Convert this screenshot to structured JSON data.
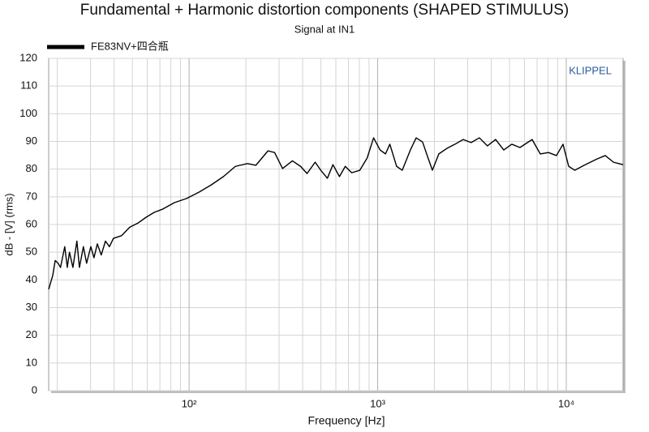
{
  "chart_data": {
    "type": "line",
    "title": "Fundamental + Harmonic distortion components (SHAPED STIMULUS)",
    "subtitle": "Signal at IN1",
    "annotation": "KLIPPEL",
    "x_label": "Frequency [Hz]",
    "y_label": "dB - [V]  (rms)",
    "x_scale": "log",
    "grid": true,
    "legend": "top-left",
    "xlim": [
      18,
      20000
    ],
    "ylim": [
      0,
      120
    ],
    "xticks": [
      {
        "value": 100,
        "label": "10²"
      },
      {
        "value": 1000,
        "label": "10³"
      },
      {
        "value": 10000,
        "label": "10⁴"
      }
    ],
    "xminorticks": [
      20,
      30,
      40,
      50,
      60,
      70,
      80,
      90,
      200,
      300,
      400,
      500,
      600,
      700,
      800,
      900,
      2000,
      3000,
      4000,
      5000,
      6000,
      7000,
      8000,
      9000
    ],
    "yticks": [
      0,
      10,
      20,
      30,
      40,
      50,
      60,
      70,
      80,
      90,
      100,
      110,
      120
    ],
    "x": [
      18,
      18.9,
      19.5,
      20.2,
      20.8,
      21.9,
      22.6,
      23.2,
      24.2,
      25.4,
      26.2,
      27.5,
      28.6,
      30.1,
      31.3,
      32.6,
      34.2,
      36,
      37.8,
      39.7,
      43.9,
      48.4,
      53.5,
      59.1,
      65.3,
      72.1,
      83.6,
      97,
      113,
      131,
      152,
      176,
      204,
      226,
      262,
      284,
      313,
      353,
      390,
      422,
      466,
      499,
      541,
      579,
      627,
      673,
      728,
      804,
      879,
      951,
      1030,
      1100,
      1160,
      1260,
      1350,
      1490,
      1600,
      1730,
      1850,
      1950,
      2110,
      2330,
      2570,
      2840,
      3130,
      3460,
      3820,
      4220,
      4660,
      5140,
      5680,
      6590,
      7280,
      8040,
      8870,
      9610,
      10300,
      11100,
      12600,
      14600,
      16100,
      17800,
      20000
    ],
    "series": [
      {
        "name": "FE83NV+四合瓶",
        "color": "#000000",
        "values": [
          36.6,
          41.5,
          47,
          46,
          44.5,
          52,
          44.5,
          50,
          44.5,
          54,
          44.5,
          52,
          46,
          52,
          48,
          53,
          49,
          54,
          52,
          55,
          56,
          59,
          60.5,
          62.6,
          64.4,
          65.5,
          67.9,
          69.4,
          71.7,
          74.3,
          77.3,
          81,
          82,
          81.4,
          86.6,
          86,
          80.2,
          83,
          81,
          78.4,
          82.5,
          79.6,
          76.7,
          81.6,
          77.3,
          81,
          78.7,
          79.6,
          84,
          91.3,
          86.9,
          85.5,
          89,
          81,
          79.6,
          86.9,
          91.3,
          89.8,
          84,
          79.6,
          85.5,
          87.5,
          89,
          90.7,
          89.6,
          91.3,
          88.4,
          90.7,
          86.9,
          89,
          87.8,
          90.7,
          85.5,
          86,
          84.9,
          89,
          81,
          79.6,
          81.6,
          83.7,
          84.9,
          82.5,
          81.6
        ]
      }
    ]
  }
}
